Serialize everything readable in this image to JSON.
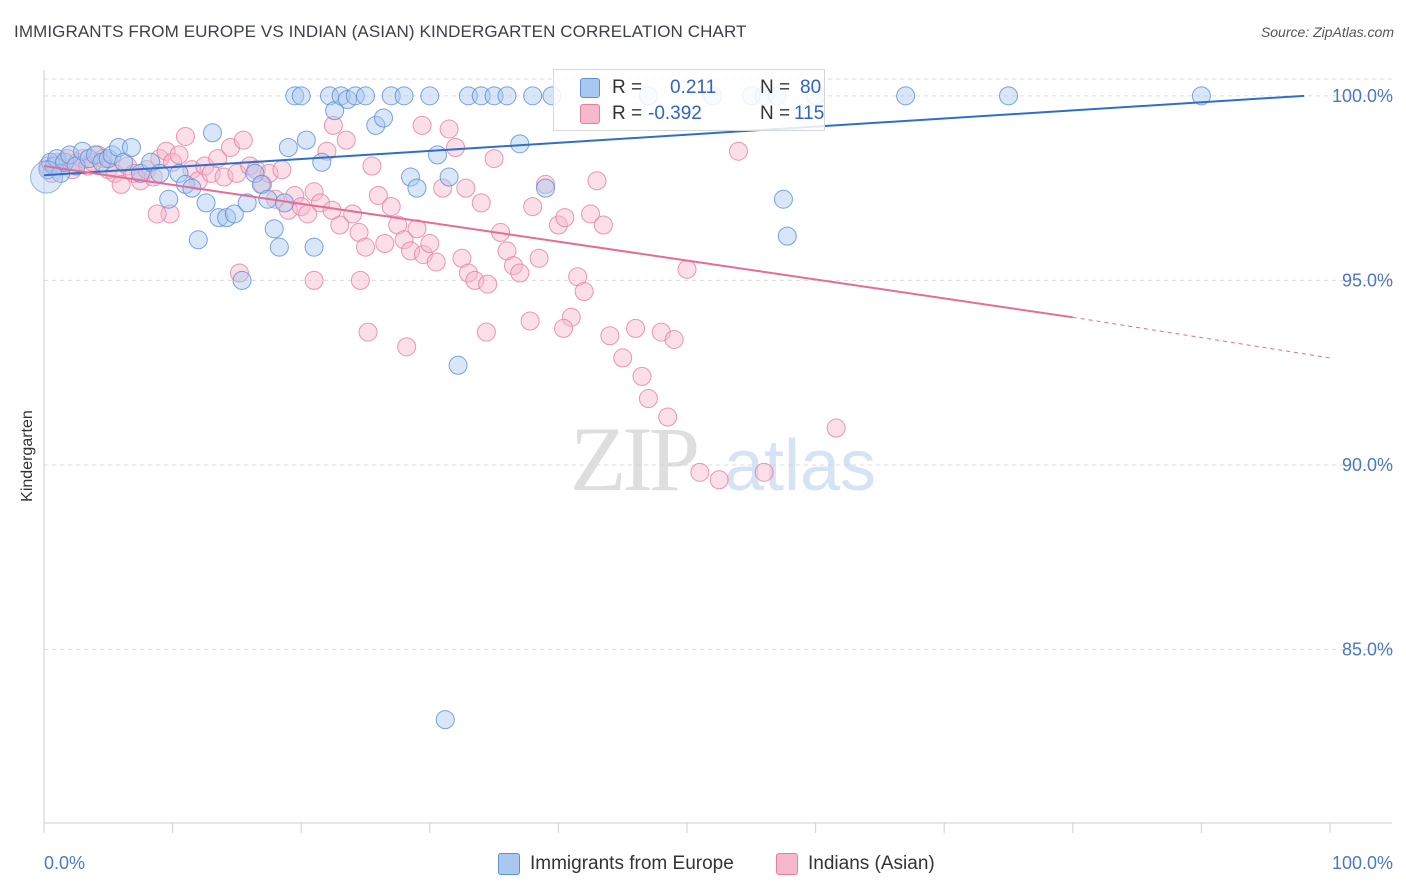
{
  "title": "IMMIGRANTS FROM EUROPE VS INDIAN (ASIAN) KINDERGARTEN CORRELATION CHART",
  "source": "Source: ZipAtlas.com",
  "watermark": {
    "zip": "ZIP",
    "atlas": "atlas"
  },
  "legend_top": {
    "rows": [
      {
        "r_label": "R =",
        "r_value": "0.211",
        "n_label": "N =",
        "n_value": "80"
      },
      {
        "r_label": "R =",
        "r_value": "-0.392",
        "n_label": "N =",
        "n_value": "115"
      }
    ]
  },
  "colors": {
    "blue_fill": "#a9c8f0",
    "blue_stroke": "#5b8fd6",
    "blue_line": "#2f6fc8",
    "pink_fill": "#f5b8cc",
    "pink_stroke": "#e47fa2",
    "pink_line": "#e46d98",
    "value_text": "#2f63c4",
    "grid": "#dcdcdc"
  },
  "chart_data": {
    "type": "scatter",
    "title": "IMMIGRANTS FROM EUROPE VS INDIAN (ASIAN) KINDERGARTEN CORRELATION CHART",
    "xlabel": "",
    "ylabel": "Kindergarten",
    "xlim": [
      0,
      100
    ],
    "ylim": [
      80.3,
      100.7
    ],
    "x_tick_labels": [
      "0.0%",
      "100.0%"
    ],
    "y_ticks": [
      85,
      90,
      95,
      100
    ],
    "y_tick_labels": [
      "85.0%",
      "90.0%",
      "95.0%",
      "100.0%"
    ],
    "series": [
      {
        "name": "Immigrants from Europe",
        "color": "blue",
        "R": 0.211,
        "N": 80,
        "trend": {
          "x0": 0,
          "y0": 97.85,
          "x1": 98,
          "y1": 100.0
        },
        "points": [
          [
            0.3,
            98.0
          ],
          [
            0.5,
            98.2
          ],
          [
            0.8,
            98.1
          ],
          [
            1.0,
            98.3
          ],
          [
            1.3,
            97.9
          ],
          [
            1.6,
            98.2
          ],
          [
            2.0,
            98.4
          ],
          [
            2.5,
            98.1
          ],
          [
            3.0,
            98.5
          ],
          [
            3.5,
            98.3
          ],
          [
            4.0,
            98.4
          ],
          [
            4.5,
            98.2
          ],
          [
            5.0,
            98.3
          ],
          [
            5.3,
            98.4
          ],
          [
            5.8,
            98.6
          ],
          [
            6.2,
            98.2
          ],
          [
            6.8,
            98.6
          ],
          [
            7.5,
            97.9
          ],
          [
            8.3,
            98.2
          ],
          [
            9.0,
            97.9
          ],
          [
            9.7,
            97.2
          ],
          [
            10.5,
            97.9
          ],
          [
            11.0,
            97.6
          ],
          [
            11.5,
            97.5
          ],
          [
            12.0,
            96.1
          ],
          [
            12.6,
            97.1
          ],
          [
            13.1,
            99.0
          ],
          [
            13.6,
            96.7
          ],
          [
            14.2,
            96.7
          ],
          [
            14.8,
            96.8
          ],
          [
            15.4,
            95.0
          ],
          [
            15.8,
            97.1
          ],
          [
            16.4,
            97.9
          ],
          [
            16.9,
            97.6
          ],
          [
            17.4,
            97.2
          ],
          [
            17.9,
            96.4
          ],
          [
            18.3,
            95.9
          ],
          [
            18.7,
            97.1
          ],
          [
            19.0,
            98.6
          ],
          [
            19.5,
            100.0
          ],
          [
            20.0,
            100.0
          ],
          [
            20.4,
            98.8
          ],
          [
            21.0,
            95.9
          ],
          [
            21.6,
            98.2
          ],
          [
            22.2,
            100.0
          ],
          [
            22.6,
            99.6
          ],
          [
            23.1,
            100.0
          ],
          [
            23.6,
            99.9
          ],
          [
            24.2,
            100.0
          ],
          [
            25.0,
            100.0
          ],
          [
            25.8,
            99.2
          ],
          [
            26.4,
            99.4
          ],
          [
            27.0,
            100.0
          ],
          [
            28.0,
            100.0
          ],
          [
            28.5,
            97.8
          ],
          [
            29.0,
            97.5
          ],
          [
            30.0,
            100.0
          ],
          [
            30.6,
            98.4
          ],
          [
            31.5,
            97.8
          ],
          [
            32.2,
            92.7
          ],
          [
            33.0,
            100.0
          ],
          [
            34.0,
            100.0
          ],
          [
            35.0,
            100.0
          ],
          [
            36.0,
            100.0
          ],
          [
            37.0,
            98.7
          ],
          [
            38.0,
            100.0
          ],
          [
            39.0,
            97.5
          ],
          [
            39.5,
            100.0
          ],
          [
            47.0,
            100.0
          ],
          [
            52.0,
            100.0
          ],
          [
            55.0,
            100.0
          ],
          [
            56.0,
            100.0
          ],
          [
            57.0,
            100.0
          ],
          [
            57.5,
            97.2
          ],
          [
            60.0,
            100.0
          ],
          [
            67.0,
            100.0
          ],
          [
            75.0,
            100.0
          ],
          [
            90.0,
            100.0
          ],
          [
            31.2,
            83.1
          ],
          [
            57.8,
            96.2
          ]
        ]
      },
      {
        "name": "Indians (Asian)",
        "color": "pink",
        "R": -0.392,
        "N": 115,
        "trend": {
          "x0": 0,
          "y0": 98.1,
          "x1": 80,
          "y1": 94.0,
          "dash_to_x": 100,
          "dash_to_y": 92.9
        },
        "points": [
          [
            0.3,
            98.1
          ],
          [
            0.6,
            97.9
          ],
          [
            1.0,
            98.2
          ],
          [
            1.4,
            98.1
          ],
          [
            1.8,
            98.3
          ],
          [
            2.2,
            98.0
          ],
          [
            2.6,
            98.2
          ],
          [
            3.0,
            98.3
          ],
          [
            3.4,
            98.1
          ],
          [
            3.8,
            98.2
          ],
          [
            4.2,
            98.4
          ],
          [
            4.6,
            98.3
          ],
          [
            5.0,
            98.0
          ],
          [
            5.5,
            97.9
          ],
          [
            6.0,
            97.6
          ],
          [
            6.5,
            98.1
          ],
          [
            7.0,
            97.9
          ],
          [
            7.5,
            97.7
          ],
          [
            8.0,
            98.0
          ],
          [
            8.5,
            97.8
          ],
          [
            9.0,
            98.3
          ],
          [
            9.5,
            98.5
          ],
          [
            10.0,
            98.2
          ],
          [
            10.5,
            98.4
          ],
          [
            11.0,
            98.9
          ],
          [
            11.5,
            98.0
          ],
          [
            12.0,
            97.7
          ],
          [
            12.5,
            98.1
          ],
          [
            13.0,
            97.9
          ],
          [
            13.5,
            98.3
          ],
          [
            14.0,
            97.8
          ],
          [
            14.5,
            98.6
          ],
          [
            15.0,
            97.9
          ],
          [
            15.5,
            98.8
          ],
          [
            16.0,
            98.1
          ],
          [
            16.5,
            98.0
          ],
          [
            17.0,
            97.6
          ],
          [
            17.5,
            97.9
          ],
          [
            18.0,
            97.2
          ],
          [
            18.5,
            98.0
          ],
          [
            19.0,
            96.9
          ],
          [
            19.5,
            97.3
          ],
          [
            20.0,
            97.0
          ],
          [
            20.5,
            96.8
          ],
          [
            21.0,
            97.4
          ],
          [
            21.5,
            97.1
          ],
          [
            22.0,
            98.5
          ],
          [
            22.5,
            99.2
          ],
          [
            23.0,
            96.5
          ],
          [
            23.5,
            98.8
          ],
          [
            24.0,
            96.8
          ],
          [
            24.5,
            96.3
          ],
          [
            25.0,
            95.9
          ],
          [
            25.5,
            98.1
          ],
          [
            26.0,
            97.3
          ],
          [
            26.5,
            96.0
          ],
          [
            27.0,
            97.0
          ],
          [
            27.5,
            96.5
          ],
          [
            28.0,
            96.1
          ],
          [
            28.5,
            95.8
          ],
          [
            29.0,
            96.4
          ],
          [
            29.5,
            95.7
          ],
          [
            30.0,
            96.0
          ],
          [
            30.5,
            95.5
          ],
          [
            31.0,
            97.5
          ],
          [
            31.5,
            99.1
          ],
          [
            32.0,
            98.6
          ],
          [
            32.5,
            95.6
          ],
          [
            33.0,
            95.2
          ],
          [
            33.5,
            95.0
          ],
          [
            34.0,
            97.1
          ],
          [
            34.5,
            94.9
          ],
          [
            35.0,
            98.3
          ],
          [
            35.5,
            96.3
          ],
          [
            36.0,
            95.8
          ],
          [
            36.5,
            95.4
          ],
          [
            37.0,
            95.2
          ],
          [
            38.0,
            97.0
          ],
          [
            38.5,
            95.6
          ],
          [
            39.0,
            97.6
          ],
          [
            40.0,
            96.5
          ],
          [
            40.5,
            96.7
          ],
          [
            41.0,
            94.0
          ],
          [
            41.5,
            95.1
          ],
          [
            42.0,
            94.7
          ],
          [
            42.5,
            96.8
          ],
          [
            43.0,
            97.7
          ],
          [
            43.5,
            96.5
          ],
          [
            44.0,
            93.5
          ],
          [
            45.0,
            92.9
          ],
          [
            46.0,
            93.7
          ],
          [
            46.5,
            92.4
          ],
          [
            47.0,
            91.8
          ],
          [
            48.0,
            93.6
          ],
          [
            48.5,
            91.3
          ],
          [
            49.0,
            93.4
          ],
          [
            50.0,
            95.3
          ],
          [
            51.0,
            89.8
          ],
          [
            52.5,
            89.6
          ],
          [
            54.0,
            98.5
          ],
          [
            56.0,
            89.8
          ],
          [
            61.6,
            91.0
          ],
          [
            25.2,
            93.6
          ],
          [
            24.6,
            95.0
          ],
          [
            28.2,
            93.2
          ],
          [
            34.4,
            93.6
          ],
          [
            37.8,
            93.9
          ],
          [
            40.4,
            93.7
          ],
          [
            22.4,
            96.9
          ],
          [
            15.2,
            95.2
          ],
          [
            21.0,
            95.0
          ],
          [
            9.8,
            96.8
          ],
          [
            8.8,
            96.8
          ],
          [
            32.8,
            97.5
          ],
          [
            29.4,
            99.2
          ]
        ]
      }
    ]
  },
  "legend_bottom": [
    {
      "label": "Immigrants from Europe",
      "color": "blue"
    },
    {
      "label": "Indians (Asian)",
      "color": "pink"
    }
  ]
}
